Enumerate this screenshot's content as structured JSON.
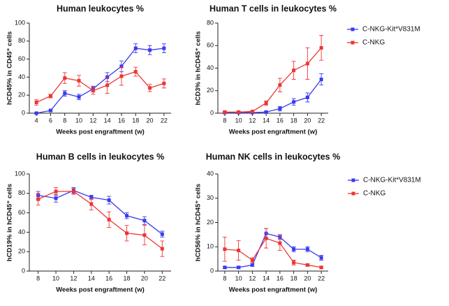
{
  "chart_data": [
    {
      "type": "line",
      "title": "Human leukocytes %",
      "x_label": "Weeks post engraftment (w)",
      "y_label": "hCD45% in CD45⁺ cells",
      "x": [
        4,
        6,
        8,
        10,
        12,
        14,
        16,
        18,
        20,
        22
      ],
      "xlim": [
        3,
        23
      ],
      "xticks": [
        4,
        6,
        8,
        10,
        12,
        14,
        16,
        18,
        20,
        22
      ],
      "ylim": [
        0,
        100
      ],
      "yticks": [
        0,
        20,
        40,
        60,
        80,
        100
      ],
      "series": [
        {
          "color": "#3a3af0",
          "values": [
            0,
            3,
            22,
            18,
            27,
            40,
            52,
            72,
            70,
            72
          ],
          "errors": [
            0.5,
            1,
            3,
            3,
            3,
            5,
            6,
            5,
            5,
            5
          ]
        },
        {
          "color": "#ee3535",
          "values": [
            12,
            19,
            39,
            36,
            25,
            31,
            41,
            46,
            28,
            33
          ],
          "errors": [
            3,
            2,
            6,
            6,
            4,
            9,
            10,
            5,
            4,
            5
          ]
        }
      ]
    },
    {
      "type": "line",
      "title": "Human T cells in leukocytes %",
      "x_label": "Weeks post engraftment (w)",
      "y_label": "hCD3% in hCD45⁺ cells",
      "x": [
        8,
        10,
        12,
        14,
        16,
        18,
        20,
        22
      ],
      "xlim": [
        7,
        23
      ],
      "xticks": [
        8,
        10,
        12,
        14,
        16,
        18,
        20,
        22
      ],
      "ylim": [
        0,
        80
      ],
      "yticks": [
        0,
        20,
        40,
        60,
        80
      ],
      "legend": "right",
      "series": [
        {
          "name": "C-NKG-Kit*V831M",
          "color": "#3a3af0",
          "values": [
            0.5,
            0.5,
            0.5,
            1,
            4,
            10,
            14,
            30
          ],
          "errors": [
            0.3,
            0.3,
            0.3,
            0.5,
            2,
            3,
            4,
            5
          ]
        },
        {
          "name": "C-NKG",
          "color": "#ee3535",
          "values": [
            1,
            1,
            1.5,
            9,
            25,
            38,
            44,
            58
          ],
          "errors": [
            0.5,
            0.5,
            0.5,
            2,
            6,
            8,
            14,
            11
          ]
        }
      ]
    },
    {
      "type": "line",
      "title": "Human B cells in leukocytes %",
      "x_label": "Weeks post engraftment (w)",
      "y_label": "hCD19% in hCD45⁺ cells",
      "x": [
        8,
        10,
        12,
        14,
        16,
        18,
        20,
        22
      ],
      "xlim": [
        7,
        23
      ],
      "xticks": [
        8,
        10,
        12,
        14,
        16,
        18,
        20,
        22
      ],
      "ylim": [
        0,
        100
      ],
      "yticks": [
        0,
        20,
        40,
        60,
        80,
        100
      ],
      "series": [
        {
          "color": "#3a3af0",
          "values": [
            78,
            75,
            83,
            76,
            73,
            57,
            52,
            38
          ],
          "errors": [
            4,
            4,
            3,
            2,
            4,
            3,
            4,
            3
          ]
        },
        {
          "color": "#ee3535",
          "values": [
            74,
            82,
            82,
            69,
            53,
            39,
            37,
            23
          ],
          "errors": [
            6,
            4,
            3,
            6,
            8,
            8,
            10,
            8
          ]
        }
      ]
    },
    {
      "type": "line",
      "title": "Human NK cells in leukocytes %",
      "x_label": "Weeks post engraftment (w)",
      "y_label": "hCD56% in hCD45⁺ cells",
      "x": [
        8,
        10,
        12,
        14,
        16,
        18,
        20,
        22
      ],
      "xlim": [
        7,
        23
      ],
      "xticks": [
        8,
        10,
        12,
        14,
        16,
        18,
        20,
        22
      ],
      "ylim": [
        0,
        40
      ],
      "yticks": [
        0,
        10,
        20,
        30,
        40
      ],
      "legend": "right",
      "series": [
        {
          "name": "C-NKG-Kit*V831M",
          "color": "#3a3af0",
          "values": [
            1.5,
            1.5,
            2.5,
            15.5,
            14,
            9,
            9,
            5.5
          ],
          "errors": [
            0.5,
            0.5,
            0.5,
            2,
            1,
            1,
            1,
            1
          ]
        },
        {
          "name": "C-NKG",
          "color": "#ee3535",
          "values": [
            9,
            8.5,
            4.5,
            13.5,
            11.5,
            3.5,
            2.5,
            1.5
          ],
          "errors": [
            5,
            4,
            1,
            4,
            3,
            1,
            0.5,
            0.5
          ]
        }
      ]
    }
  ]
}
